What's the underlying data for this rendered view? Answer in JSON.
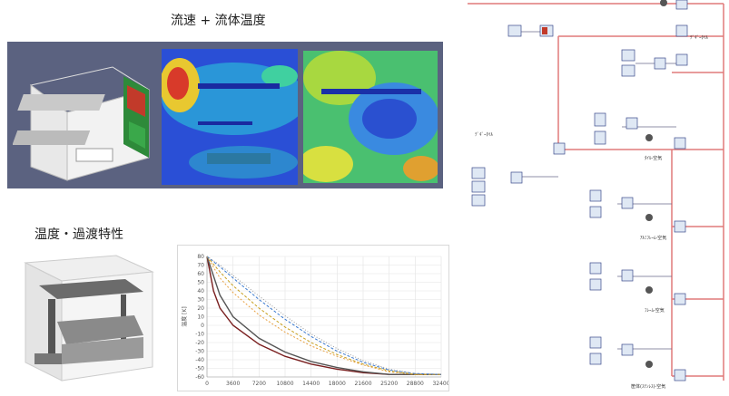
{
  "titles": {
    "flow": "流速 + 流体温度",
    "transient": "温度・過渡特性"
  },
  "diagram": {
    "labels": [
      {
        "text": "ﾃﾞｷﾞｰﾀｲﾙ"
      },
      {
        "text": "ﾀｲﾙ-空気"
      },
      {
        "text": "ｱﾙﾐﾌﾚｰﾑ-空気"
      },
      {
        "text": "ﾌﾚｰﾑ-空気"
      },
      {
        "text": "ﾃﾞｷﾞｰﾀｲﾙ"
      },
      {
        "text": "筐体(ｽﾃﾝﾚｽ)-空気"
      }
    ]
  },
  "chart_data": {
    "type": "line",
    "title": "",
    "xlabel": "",
    "ylabel": "温度 [K]",
    "x_ticks": [
      "0",
      "3600",
      "7200",
      "10800",
      "14400",
      "18000",
      "21600",
      "25200",
      "28800",
      "32400"
    ],
    "y_ticks": [
      "80",
      "70",
      "60",
      "50",
      "40",
      "30",
      "20",
      "10",
      "0",
      "-10",
      "-20",
      "-30",
      "-40",
      "-50",
      "-60"
    ],
    "xlim": [
      0,
      32400
    ],
    "ylim": [
      -60,
      80
    ],
    "grid": true,
    "series": [
      {
        "color": "#7a1f1f",
        "values": [
          [
            0,
            80
          ],
          [
            900,
            40
          ],
          [
            1800,
            20
          ],
          [
            3600,
            0
          ],
          [
            7200,
            -22
          ],
          [
            10800,
            -36
          ],
          [
            14400,
            -45
          ],
          [
            18000,
            -51
          ],
          [
            21600,
            -55
          ],
          [
            25200,
            -57
          ],
          [
            28800,
            -57
          ],
          [
            32400,
            -57
          ]
        ]
      },
      {
        "color": "#555555",
        "values": [
          [
            0,
            80
          ],
          [
            1800,
            35
          ],
          [
            3600,
            10
          ],
          [
            7200,
            -15
          ],
          [
            10800,
            -31
          ],
          [
            14400,
            -42
          ],
          [
            18000,
            -49
          ],
          [
            21600,
            -54
          ],
          [
            25200,
            -57
          ],
          [
            28800,
            -57
          ],
          [
            32400,
            -57
          ]
        ]
      },
      {
        "color": "#e8a040",
        "values": [
          [
            0,
            80
          ],
          [
            1800,
            55
          ],
          [
            3600,
            38
          ],
          [
            7200,
            12
          ],
          [
            10800,
            -8
          ],
          [
            14400,
            -24
          ],
          [
            18000,
            -36
          ],
          [
            21600,
            -46
          ],
          [
            25200,
            -54
          ],
          [
            28800,
            -57
          ],
          [
            32400,
            -57
          ]
        ]
      },
      {
        "color": "#c8a020",
        "values": [
          [
            0,
            80
          ],
          [
            1800,
            62
          ],
          [
            3600,
            46
          ],
          [
            7200,
            20
          ],
          [
            10800,
            -2
          ],
          [
            14400,
            -20
          ],
          [
            18000,
            -34
          ],
          [
            21600,
            -45
          ],
          [
            25200,
            -53
          ],
          [
            28800,
            -57
          ],
          [
            32400,
            -57
          ]
        ]
      },
      {
        "color": "#3a7ad0",
        "values": [
          [
            0,
            80
          ],
          [
            1800,
            68
          ],
          [
            3600,
            55
          ],
          [
            7200,
            30
          ],
          [
            10800,
            7
          ],
          [
            14400,
            -13
          ],
          [
            18000,
            -30
          ],
          [
            21600,
            -43
          ],
          [
            25200,
            -52
          ],
          [
            28800,
            -56
          ],
          [
            32400,
            -57
          ]
        ]
      },
      {
        "color": "#9a9a9a",
        "values": [
          [
            0,
            80
          ],
          [
            1800,
            70
          ],
          [
            3600,
            58
          ],
          [
            7200,
            34
          ],
          [
            10800,
            11
          ],
          [
            14400,
            -10
          ],
          [
            18000,
            -27
          ],
          [
            21600,
            -41
          ],
          [
            25200,
            -51
          ],
          [
            28800,
            -56
          ],
          [
            32400,
            -57
          ]
        ]
      }
    ]
  }
}
